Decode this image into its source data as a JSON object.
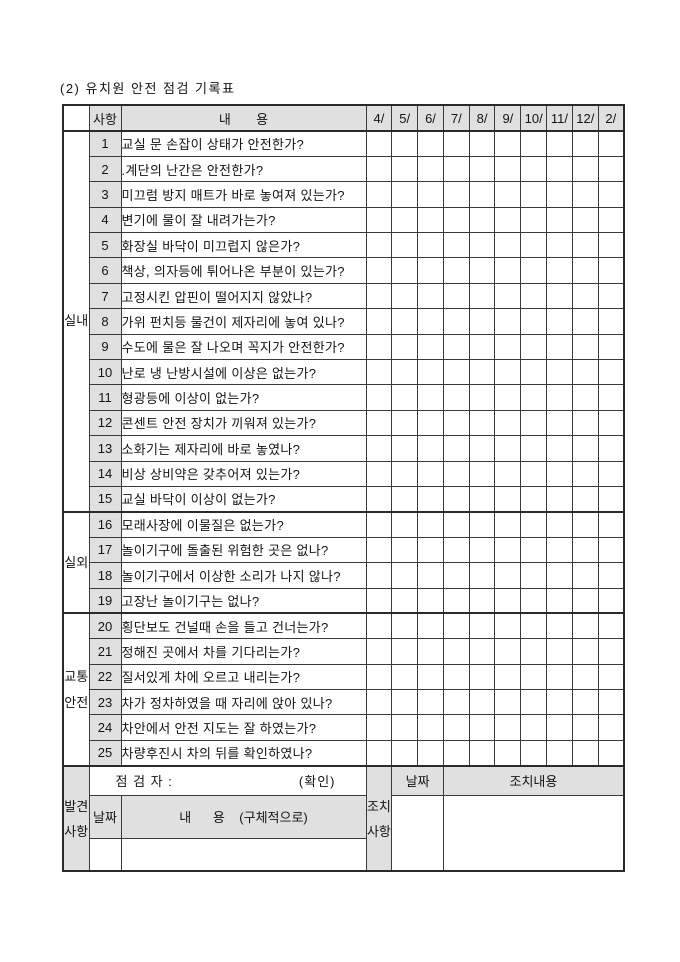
{
  "title": "(2) 유치원 안전 점검 기록표",
  "table": {
    "header": {
      "item_no": "사항",
      "content": "내       용",
      "months": [
        "4/",
        "5/",
        "6/",
        "7/",
        "8/",
        "9/",
        "10/",
        "11/",
        "12/",
        "2/"
      ]
    },
    "categories": {
      "indoor": "실내",
      "outdoor": "실외",
      "traffic": "교통안전"
    },
    "rows": [
      {
        "no": "1",
        "text": "교실 문 손잡이 상태가 안전한가?"
      },
      {
        "no": "2",
        "text": ".계단의 난간은 안전한가?"
      },
      {
        "no": "3",
        "text": "미끄럼 방지 매트가 바로 놓여져 있는가?"
      },
      {
        "no": "4",
        "text": "변기에 물이 잘 내려가는가?"
      },
      {
        "no": "5",
        "text": "화장실 바닥이 미끄럽지 않은가?"
      },
      {
        "no": "6",
        "text": "책상, 의자등에 튀어나온 부분이 있는가?"
      },
      {
        "no": "7",
        "text": "고정시킨 압핀이 떨어지지 않았나?"
      },
      {
        "no": "8",
        "text": "가위 펀치등 물건이 제자리에 놓여 있나?"
      },
      {
        "no": "9",
        "text": "수도에 물은 잘 나오며 꼭지가 안전한가?"
      },
      {
        "no": "10",
        "text": "난로 냉 난방시설에 이상은 없는가?"
      },
      {
        "no": "11",
        "text": "형광등에 이상이 없는가?"
      },
      {
        "no": "12",
        "text": "콘센트 안전 장치가 끼워져 있는가?"
      },
      {
        "no": "13",
        "text": "소화기는 제자리에 바로 놓였나?"
      },
      {
        "no": "14",
        "text": "비상 상비약은 갖추어져 있는가?"
      },
      {
        "no": "15",
        "text": "교실 바닥이 이상이 없는가?"
      },
      {
        "no": "16",
        "text": "모래사장에 이물질은 없는가?"
      },
      {
        "no": "17",
        "text": "놀이기구에 돌출된 위험한 곳은 없나?"
      },
      {
        "no": "18",
        "text": "놀이기구에서 이상한 소리가 나지 않나?"
      },
      {
        "no": "19",
        "text": "고장난 놀이기구는 없나?"
      },
      {
        "no": "20",
        "text": "횡단보도 건널때 손을 들고 건너는가?"
      },
      {
        "no": "21",
        "text": "정해진 곳에서 차를 기다리는가?"
      },
      {
        "no": "22",
        "text": "질서있게 차에 오르고 내리는가?"
      },
      {
        "no": "23",
        "text": "차가 정차하였을 때 자리에 앉아 있나?"
      },
      {
        "no": "24",
        "text": "차안에서 안전 지도는 잘 하였는가?"
      },
      {
        "no": "25",
        "text": "차량후진시 차의 뒤를 확인하였나?"
      }
    ],
    "footer": {
      "found_label": "발견사항",
      "inspector_label": "점 검 자 :",
      "confirm_label": "(확인)",
      "date_label": "날짜",
      "content_label": "내      용    (구체적으로)",
      "action_label": "조치사항",
      "action_date_label": "날짜",
      "action_content_label": "조치내용"
    },
    "colors": {
      "shaded_cell": "#e0e0e0",
      "border": "#3a3a3a"
    }
  }
}
